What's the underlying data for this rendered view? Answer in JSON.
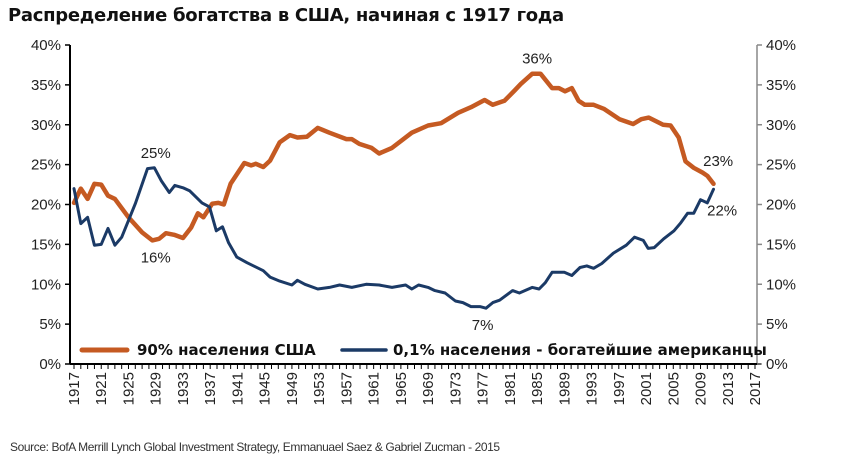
{
  "chart_data": {
    "type": "line",
    "title": "Распределение богатства в США, начиная с 1917 года",
    "source": "Source: BofA Merrill Lynch Global Investment Strategy, Emmanuael Saez & Gabriel Zucman - 2015",
    "xlabel": "",
    "ylabel": "",
    "xlim": [
      1917,
      2017
    ],
    "ylim": [
      0,
      40
    ],
    "x_ticks": [
      "1917",
      "1921",
      "1925",
      "1929",
      "1933",
      "1937",
      "1941",
      "1945",
      "1949",
      "1953",
      "1957",
      "1961",
      "1965",
      "1969",
      "1973",
      "1977",
      "1981",
      "1985",
      "1989",
      "1993",
      "1997",
      "2001",
      "2005",
      "2009",
      "2013",
      "2017"
    ],
    "y_ticks": [
      "0%",
      "5%",
      "10%",
      "15%",
      "20%",
      "25%",
      "30%",
      "35%",
      "40%"
    ],
    "legend_position": "bottom-inside",
    "colors": {
      "bottom90": "#c55a22",
      "top01": "#1b3a66"
    },
    "series": [
      {
        "name": "90% населения США",
        "key": "bottom90",
        "points": [
          [
            1917,
            20.2
          ],
          [
            1918,
            22
          ],
          [
            1919,
            20.7
          ],
          [
            1920,
            22.6
          ],
          [
            1921,
            22.5
          ],
          [
            1922,
            21.1
          ],
          [
            1923,
            20.7
          ],
          [
            1925,
            18.4
          ],
          [
            1927,
            16.5
          ],
          [
            1928.5,
            15.5
          ],
          [
            1929.5,
            15.7
          ],
          [
            1930.5,
            16.4
          ],
          [
            1931.7,
            16.2
          ],
          [
            1933,
            15.8
          ],
          [
            1934.2,
            17.1
          ],
          [
            1935.2,
            18.9
          ],
          [
            1936,
            18.4
          ],
          [
            1937.3,
            20.1
          ],
          [
            1938.2,
            20.2
          ],
          [
            1939,
            20
          ],
          [
            1940,
            22.6
          ],
          [
            1942,
            25.2
          ],
          [
            1943,
            24.9
          ],
          [
            1943.7,
            25.1
          ],
          [
            1944.8,
            24.7
          ],
          [
            1945.8,
            25.5
          ],
          [
            1947.2,
            27.8
          ],
          [
            1948.7,
            28.7
          ],
          [
            1949.8,
            28.4
          ],
          [
            1951.2,
            28.5
          ],
          [
            1952.8,
            29.6
          ],
          [
            1954.5,
            29
          ],
          [
            1957,
            28.2
          ],
          [
            1957.8,
            28.2
          ],
          [
            1958.9,
            27.6
          ],
          [
            1960.7,
            27.1
          ],
          [
            1961.8,
            26.4
          ],
          [
            1963.7,
            27.1
          ],
          [
            1966.6,
            29
          ],
          [
            1969,
            29.9
          ],
          [
            1970.9,
            30.2
          ],
          [
            1973.4,
            31.5
          ],
          [
            1975.3,
            32.2
          ],
          [
            1977.3,
            33.1
          ],
          [
            1978.5,
            32.5
          ],
          [
            1980.2,
            33
          ],
          [
            1981.7,
            34.3
          ],
          [
            1982.6,
            35.1
          ],
          [
            1984.3,
            36.4
          ],
          [
            1985.5,
            36.4
          ],
          [
            1987.2,
            34.6
          ],
          [
            1988.2,
            34.6
          ],
          [
            1989.1,
            34.2
          ],
          [
            1990.1,
            34.6
          ],
          [
            1991.1,
            33
          ],
          [
            1992,
            32.5
          ],
          [
            1993.3,
            32.5
          ],
          [
            1994.8,
            32
          ],
          [
            1997.1,
            30.7
          ],
          [
            1999.1,
            30.1
          ],
          [
            2000.3,
            30.7
          ],
          [
            2001.4,
            30.9
          ],
          [
            2003.5,
            30
          ],
          [
            2004.6,
            29.9
          ],
          [
            2005.8,
            28.4
          ],
          [
            2006.8,
            25.4
          ],
          [
            2008,
            24.6
          ],
          [
            2009.3,
            24
          ],
          [
            2010,
            23.6
          ],
          [
            2010.9,
            22.6
          ]
        ]
      },
      {
        "name": "0,1% населения - богатейшие американцы",
        "key": "top01",
        "points": [
          [
            1917,
            22
          ],
          [
            1918,
            17.6
          ],
          [
            1919,
            18.4
          ],
          [
            1920,
            14.9
          ],
          [
            1921,
            15
          ],
          [
            1922,
            17
          ],
          [
            1923,
            14.9
          ],
          [
            1924,
            15.9
          ],
          [
            1926,
            20.1
          ],
          [
            1927.8,
            24.5
          ],
          [
            1928.8,
            24.6
          ],
          [
            1929.8,
            23
          ],
          [
            1931,
            21.5
          ],
          [
            1931.8,
            22.4
          ],
          [
            1933,
            22.1
          ],
          [
            1934,
            21.7
          ],
          [
            1935.8,
            20.2
          ],
          [
            1936.9,
            19.7
          ],
          [
            1937.9,
            16.7
          ],
          [
            1938.8,
            17.2
          ],
          [
            1939.7,
            15.2
          ],
          [
            1940.9,
            13.4
          ],
          [
            1942.4,
            12.7
          ],
          [
            1944.8,
            11.7
          ],
          [
            1945.8,
            10.9
          ],
          [
            1947.2,
            10.4
          ],
          [
            1949,
            9.9
          ],
          [
            1949.8,
            10.5
          ],
          [
            1950.9,
            10
          ],
          [
            1952.8,
            9.4
          ],
          [
            1954.5,
            9.6
          ],
          [
            1956,
            9.9
          ],
          [
            1957.8,
            9.6
          ],
          [
            1959.9,
            10
          ],
          [
            1961.8,
            9.9
          ],
          [
            1963.7,
            9.6
          ],
          [
            1965.7,
            9.9
          ],
          [
            1966.6,
            9.4
          ],
          [
            1967.6,
            9.9
          ],
          [
            1969,
            9.6
          ],
          [
            1970,
            9.2
          ],
          [
            1971.5,
            8.9
          ],
          [
            1973,
            7.9
          ],
          [
            1974.1,
            7.7
          ],
          [
            1975.3,
            7.2
          ],
          [
            1976.6,
            7.2
          ],
          [
            1977.5,
            7
          ],
          [
            1978.5,
            7.7
          ],
          [
            1979.5,
            8
          ],
          [
            1981.4,
            9.2
          ],
          [
            1982.4,
            8.9
          ],
          [
            1984.3,
            9.6
          ],
          [
            1985.3,
            9.4
          ],
          [
            1986.2,
            10.2
          ],
          [
            1987.2,
            11.5
          ],
          [
            1989,
            11.5
          ],
          [
            1990.1,
            11.1
          ],
          [
            1991.3,
            12.1
          ],
          [
            1992.3,
            12.3
          ],
          [
            1993.3,
            12
          ],
          [
            1994.5,
            12.6
          ],
          [
            1996.2,
            13.9
          ],
          [
            1998.1,
            14.9
          ],
          [
            1999.3,
            15.9
          ],
          [
            2000.6,
            15.5
          ],
          [
            2001.3,
            14.5
          ],
          [
            2002.2,
            14.6
          ],
          [
            2003.6,
            15.7
          ],
          [
            2005.1,
            16.7
          ],
          [
            2006.1,
            17.7
          ],
          [
            2007.1,
            18.9
          ],
          [
            2008,
            18.9
          ],
          [
            2009,
            20.6
          ],
          [
            2010,
            20.2
          ],
          [
            2010.9,
            21.9
          ]
        ]
      }
    ],
    "annotations": [
      {
        "text": "25%",
        "series": "top01",
        "x": 1929,
        "y": 24.6,
        "pos": "above"
      },
      {
        "text": "16%",
        "series": "bottom90",
        "x": 1929,
        "y": 15.5,
        "pos": "below"
      },
      {
        "text": "36%",
        "series": "bottom90",
        "x": 1985,
        "y": 36.4,
        "pos": "above"
      },
      {
        "text": "7%",
        "series": "top01",
        "x": 1977,
        "y": 7,
        "pos": "below"
      },
      {
        "text": "23%",
        "series": "bottom90",
        "x": 2011,
        "y": 22.6,
        "pos": "above"
      },
      {
        "text": "22%",
        "series": "top01",
        "x": 2011,
        "y": 21.9,
        "pos": "below"
      }
    ]
  }
}
